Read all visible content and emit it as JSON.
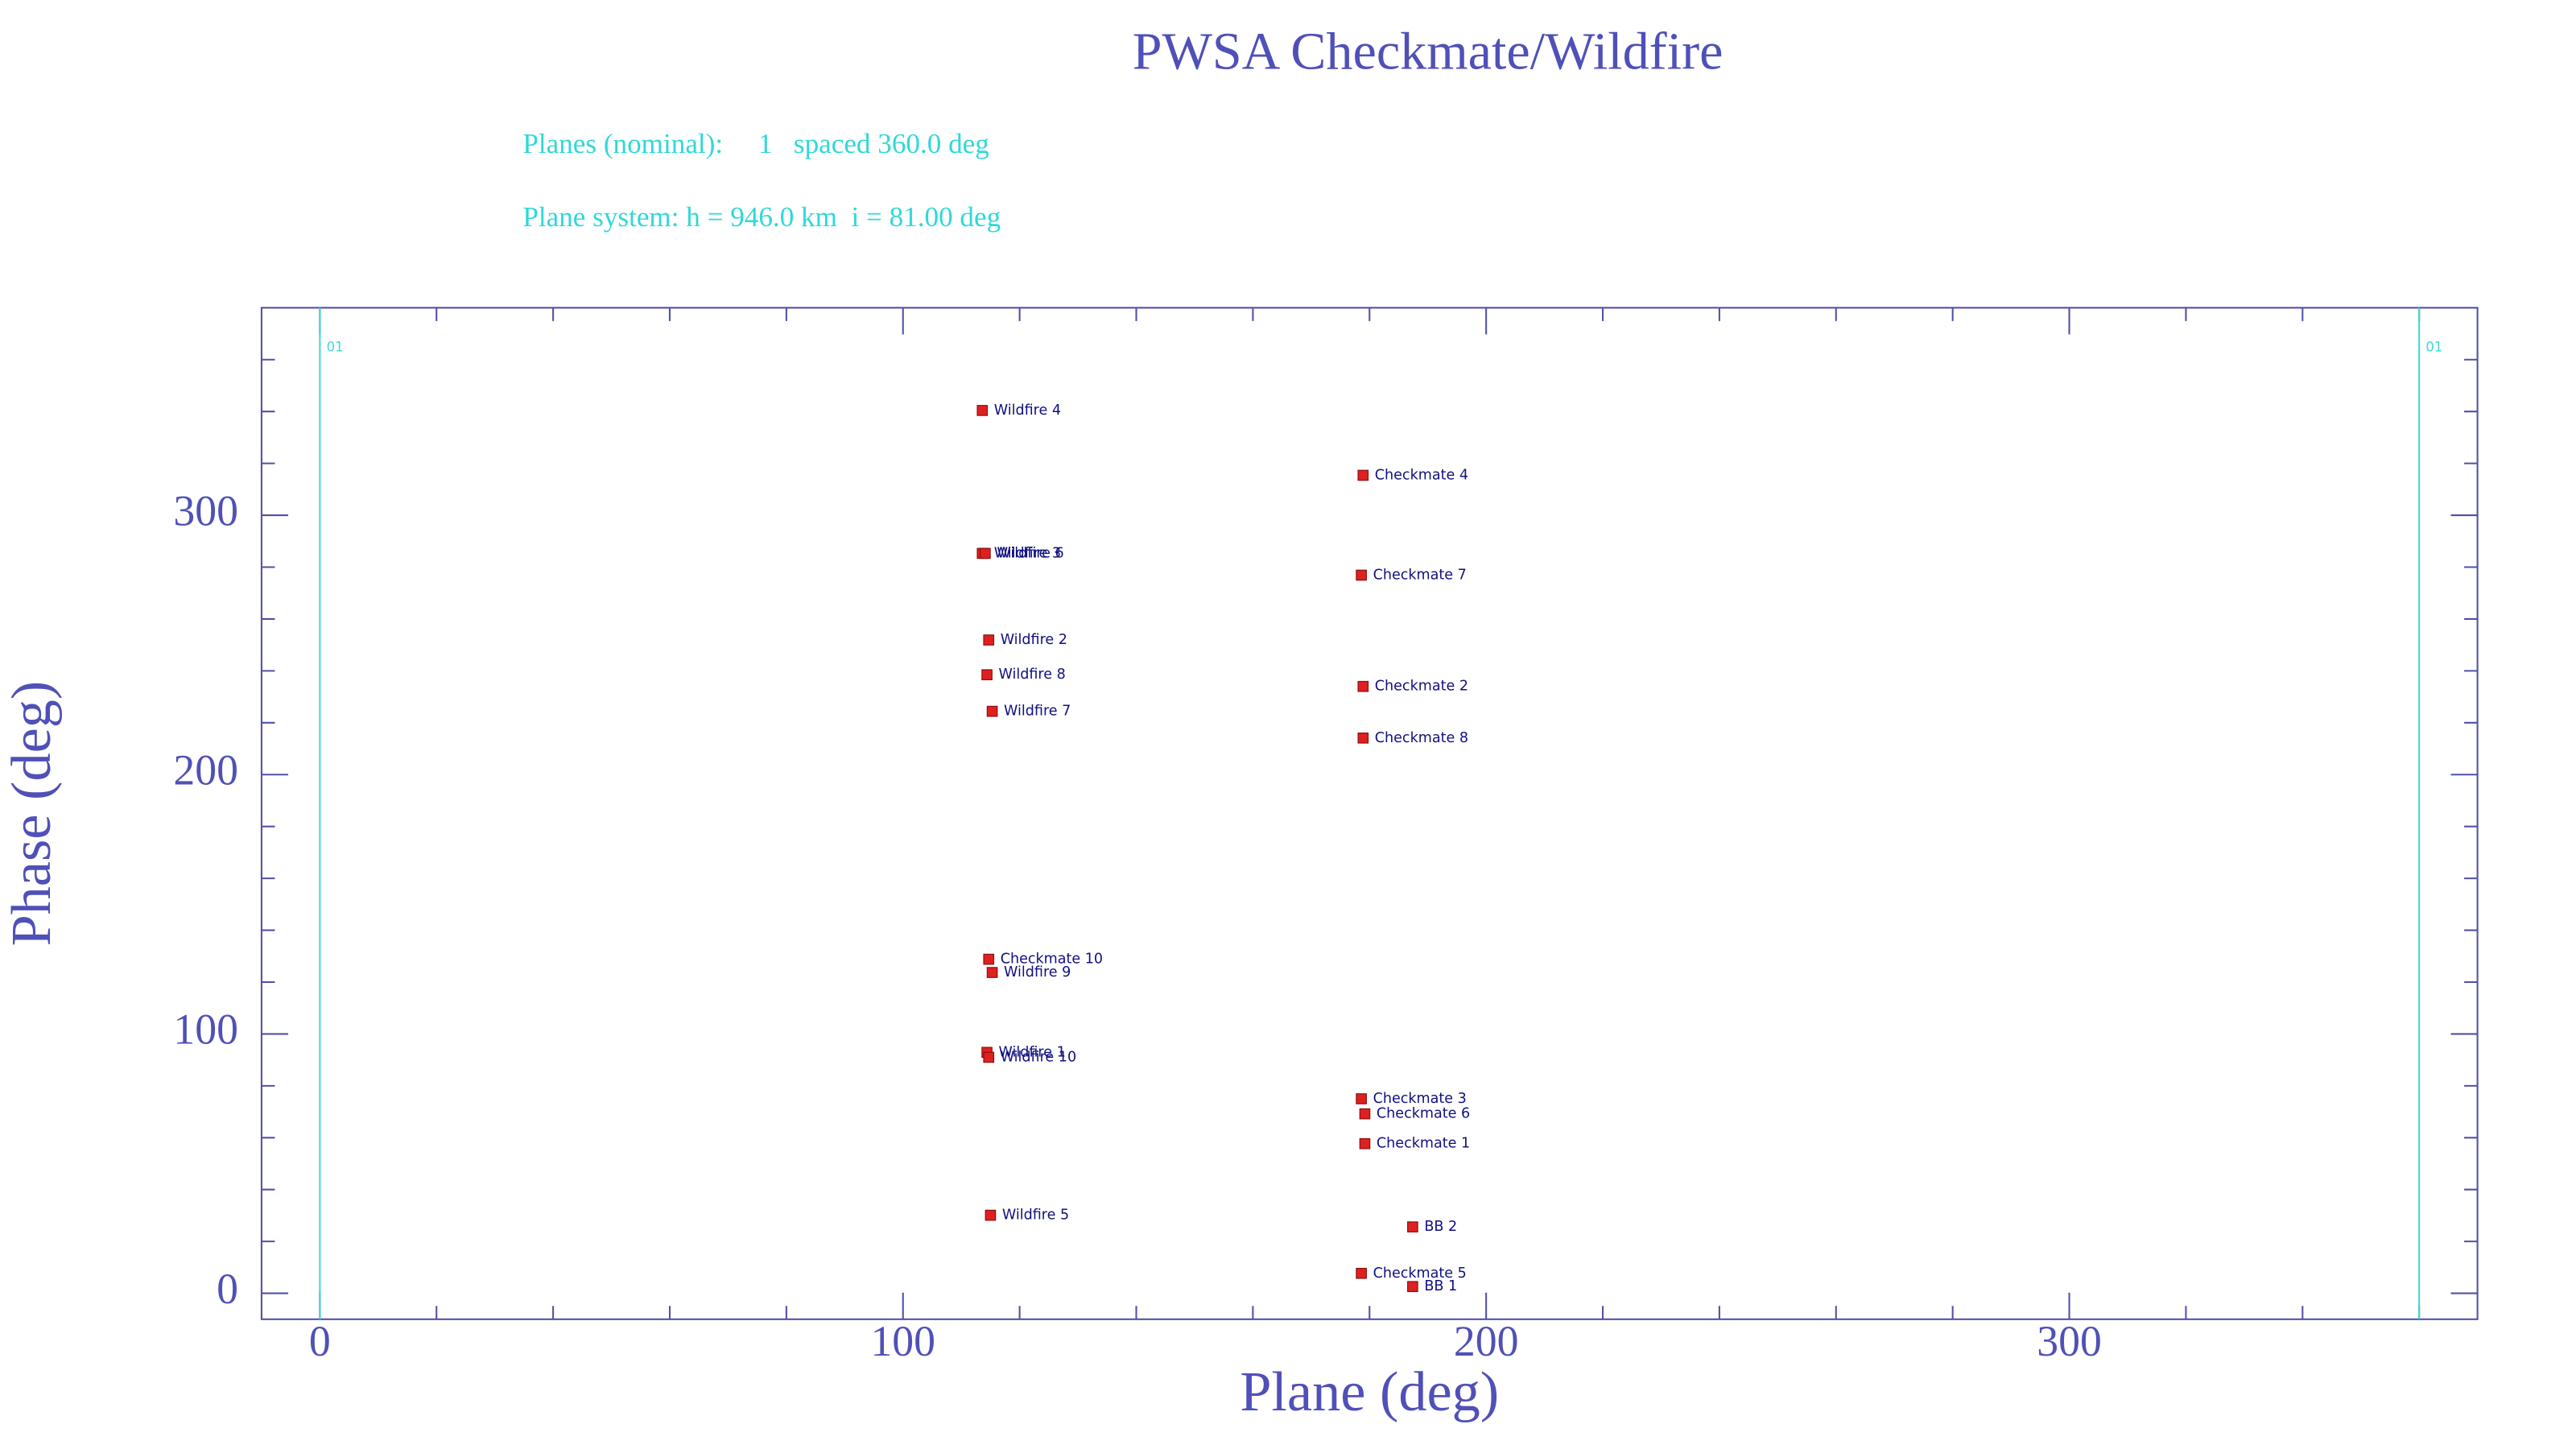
{
  "chart_data": {
    "type": "scatter",
    "title": "PWSA Checkmate/Wildfire",
    "info_lines": [
      "Planes (nominal):     1   spaced 360.0 deg",
      "Plane system: h = 946.0 km  i = 81.00 deg"
    ],
    "x_label": "Plane (deg)",
    "y_label": "Phase (deg)",
    "xlim": [
      -10,
      370
    ],
    "ylim": [
      -10,
      380
    ],
    "xticks": [
      0,
      100,
      200,
      300
    ],
    "yticks": [
      0,
      100,
      200,
      300
    ],
    "xminorticks": [
      20,
      40,
      60,
      80,
      120,
      140,
      160,
      180,
      220,
      240,
      260,
      280,
      320,
      340,
      360
    ],
    "yminorticks": [
      20,
      40,
      60,
      80,
      120,
      140,
      160,
      180,
      220,
      240,
      260,
      280,
      320,
      340,
      360
    ],
    "plane_lines": [
      {
        "x": 0,
        "label": "01"
      },
      {
        "x": 360,
        "label": "01"
      }
    ],
    "marker_color": "#e02020",
    "label_color": "#101080",
    "plane_line_color": "#40d8d8",
    "points": [
      {
        "label": "Wildfire 4",
        "x": 113.6,
        "y": 340.4
      },
      {
        "label": "Checkmate 4",
        "x": 178.9,
        "y": 315.4
      },
      {
        "label": "Wildfire 3",
        "x": 113.6,
        "y": 285.3
      },
      {
        "label": "Wildfire 6",
        "x": 114.1,
        "y": 285.3
      },
      {
        "label": "Checkmate 7",
        "x": 178.6,
        "y": 276.9
      },
      {
        "label": "Wildfire 2",
        "x": 114.7,
        "y": 251.9
      },
      {
        "label": "Wildfire 8",
        "x": 114.4,
        "y": 238.5
      },
      {
        "label": "Checkmate 2",
        "x": 178.9,
        "y": 234.0
      },
      {
        "label": "Wildfire 7",
        "x": 115.3,
        "y": 224.4
      },
      {
        "label": "Checkmate 8",
        "x": 178.9,
        "y": 214.1
      },
      {
        "label": "Checkmate 10",
        "x": 114.7,
        "y": 128.8
      },
      {
        "label": "Wildfire 9",
        "x": 115.3,
        "y": 123.7
      },
      {
        "label": "Wildfire 1",
        "x": 114.4,
        "y": 92.9
      },
      {
        "label": "Wildfire 10",
        "x": 114.7,
        "y": 91.0
      },
      {
        "label": "Checkmate 3",
        "x": 178.6,
        "y": 75.0
      },
      {
        "label": "Checkmate 6",
        "x": 179.2,
        "y": 69.2
      },
      {
        "label": "Checkmate 1",
        "x": 179.2,
        "y": 57.7
      },
      {
        "label": "Wildfire 5",
        "x": 115.0,
        "y": 30.1
      },
      {
        "label": "BB 2",
        "x": 187.4,
        "y": 25.6
      },
      {
        "label": "Checkmate 5",
        "x": 178.6,
        "y": 7.7
      },
      {
        "label": "BB 1",
        "x": 187.4,
        "y": 2.6
      }
    ]
  }
}
